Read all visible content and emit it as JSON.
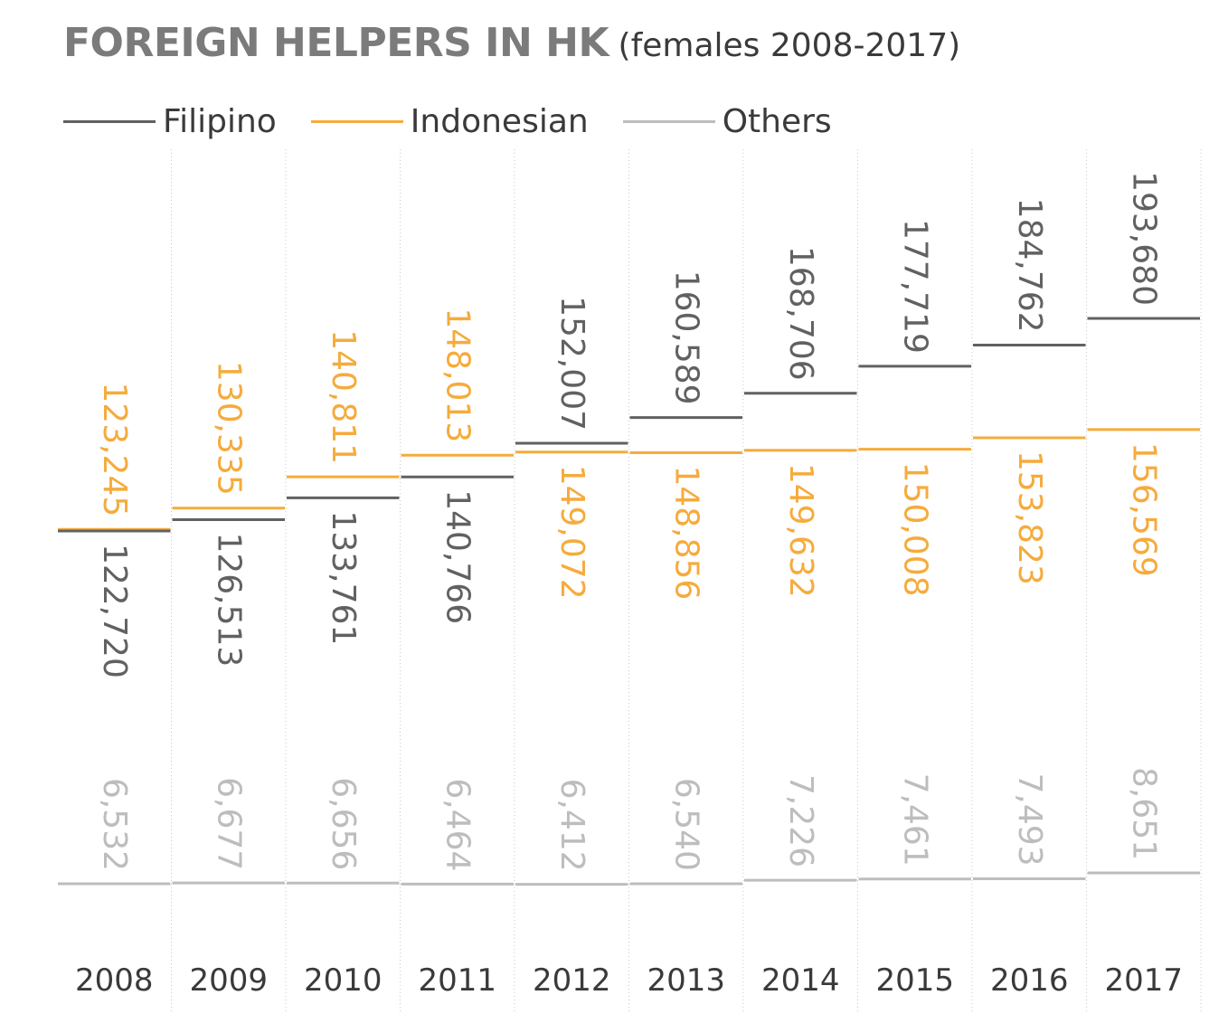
{
  "header": {
    "title": "FOREIGN HELPERS IN HK",
    "subtitle": "(females 2008-2017)"
  },
  "legend": [
    {
      "label": "Filipino",
      "color": "#616161"
    },
    {
      "label": "Indonesian",
      "color": "#f6ab3c"
    },
    {
      "label": "Others",
      "color": "#bdbdbd"
    }
  ],
  "chart_data": {
    "type": "line",
    "style": "step",
    "title": "FOREIGN HELPERS IN HK",
    "subtitle": "(females 2008-2017)",
    "categories": [
      "2008",
      "2009",
      "2010",
      "2011",
      "2012",
      "2013",
      "2014",
      "2015",
      "2016",
      "2017"
    ],
    "series": [
      {
        "name": "Filipino",
        "color": "#616161",
        "values": [
          122720,
          126513,
          133761,
          140766,
          152007,
          160589,
          168706,
          177719,
          184762,
          193680
        ],
        "labels": [
          "122,720",
          "126,513",
          "133,761",
          "140,766",
          "152,007",
          "160,589",
          "168,706",
          "177,719",
          "184,762",
          "193,680"
        ]
      },
      {
        "name": "Indonesian",
        "color": "#f6ab3c",
        "values": [
          123245,
          130335,
          140811,
          148013,
          149072,
          148856,
          149632,
          150008,
          153823,
          156569
        ],
        "labels": [
          "123,245",
          "130,335",
          "140,811",
          "148,013",
          "149,072",
          "148,856",
          "149,632",
          "150,008",
          "153,823",
          "156,569"
        ]
      },
      {
        "name": "Others",
        "color": "#bdbdbd",
        "values": [
          6532,
          6677,
          6656,
          6464,
          6412,
          6540,
          7226,
          7461,
          7493,
          8651
        ],
        "labels": [
          "6,532",
          "6,677",
          "6,656",
          "6,464",
          "6,412",
          "6,540",
          "7,226",
          "7,461",
          "7,493",
          "8,651"
        ]
      }
    ],
    "grid": {
      "vertical_dotted": true
    },
    "labels": "rotated 90 degrees, above or below each step"
  }
}
